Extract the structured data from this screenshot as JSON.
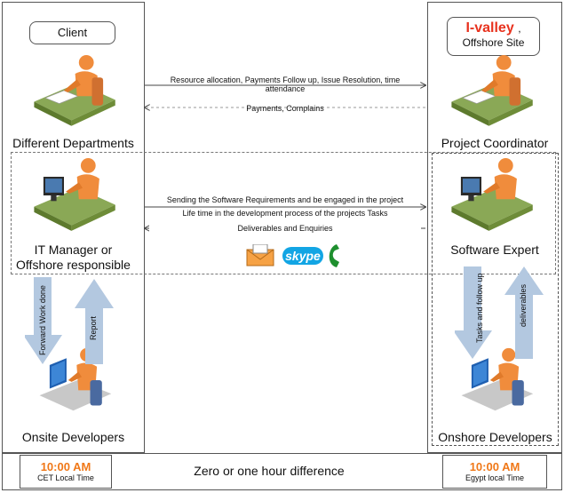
{
  "client_box": {
    "label": "Client"
  },
  "offshore_box": {
    "brand": "I-valley",
    "suffix": ",",
    "site": "Offshore Site"
  },
  "left_top_label": "Different Departments",
  "right_top_label": "Project Coordinator",
  "top_flow": {
    "line1": "Resource allocation, Payments Follow up, Issue Resolution, time",
    "line2": "attendance",
    "back": "Payments, Complains"
  },
  "mid_flow": {
    "line1": "Sending the Software Requirements and be engaged in the project",
    "line2": "Life time in the development process of the projects Tasks",
    "back": "Deliverables and Enquiries"
  },
  "it_manager": {
    "line1": "IT Manager or",
    "line2": "Offshore responsible"
  },
  "software_expert": "Software Expert",
  "left_arrows": {
    "down": "Forward Work done",
    "up": "Report"
  },
  "right_arrows": {
    "down": "Tasks and follow up",
    "up": "deliverables"
  },
  "onsite_label": "Onsite Developers",
  "onshore_label": "Onshore Developers",
  "skype": "skype",
  "footer": {
    "left_time": "10:00 AM",
    "left_zone": "CET Local Time",
    "middle": "Zero or one hour difference",
    "right_time": "10:00 AM",
    "right_zone": "Egypt local Time"
  },
  "colors": {
    "accent": "#f07818",
    "brand": "#e8321e",
    "arrow_fill": "#b3c8e0",
    "desk": "#6b8a3a",
    "person": "#f08c3c"
  }
}
